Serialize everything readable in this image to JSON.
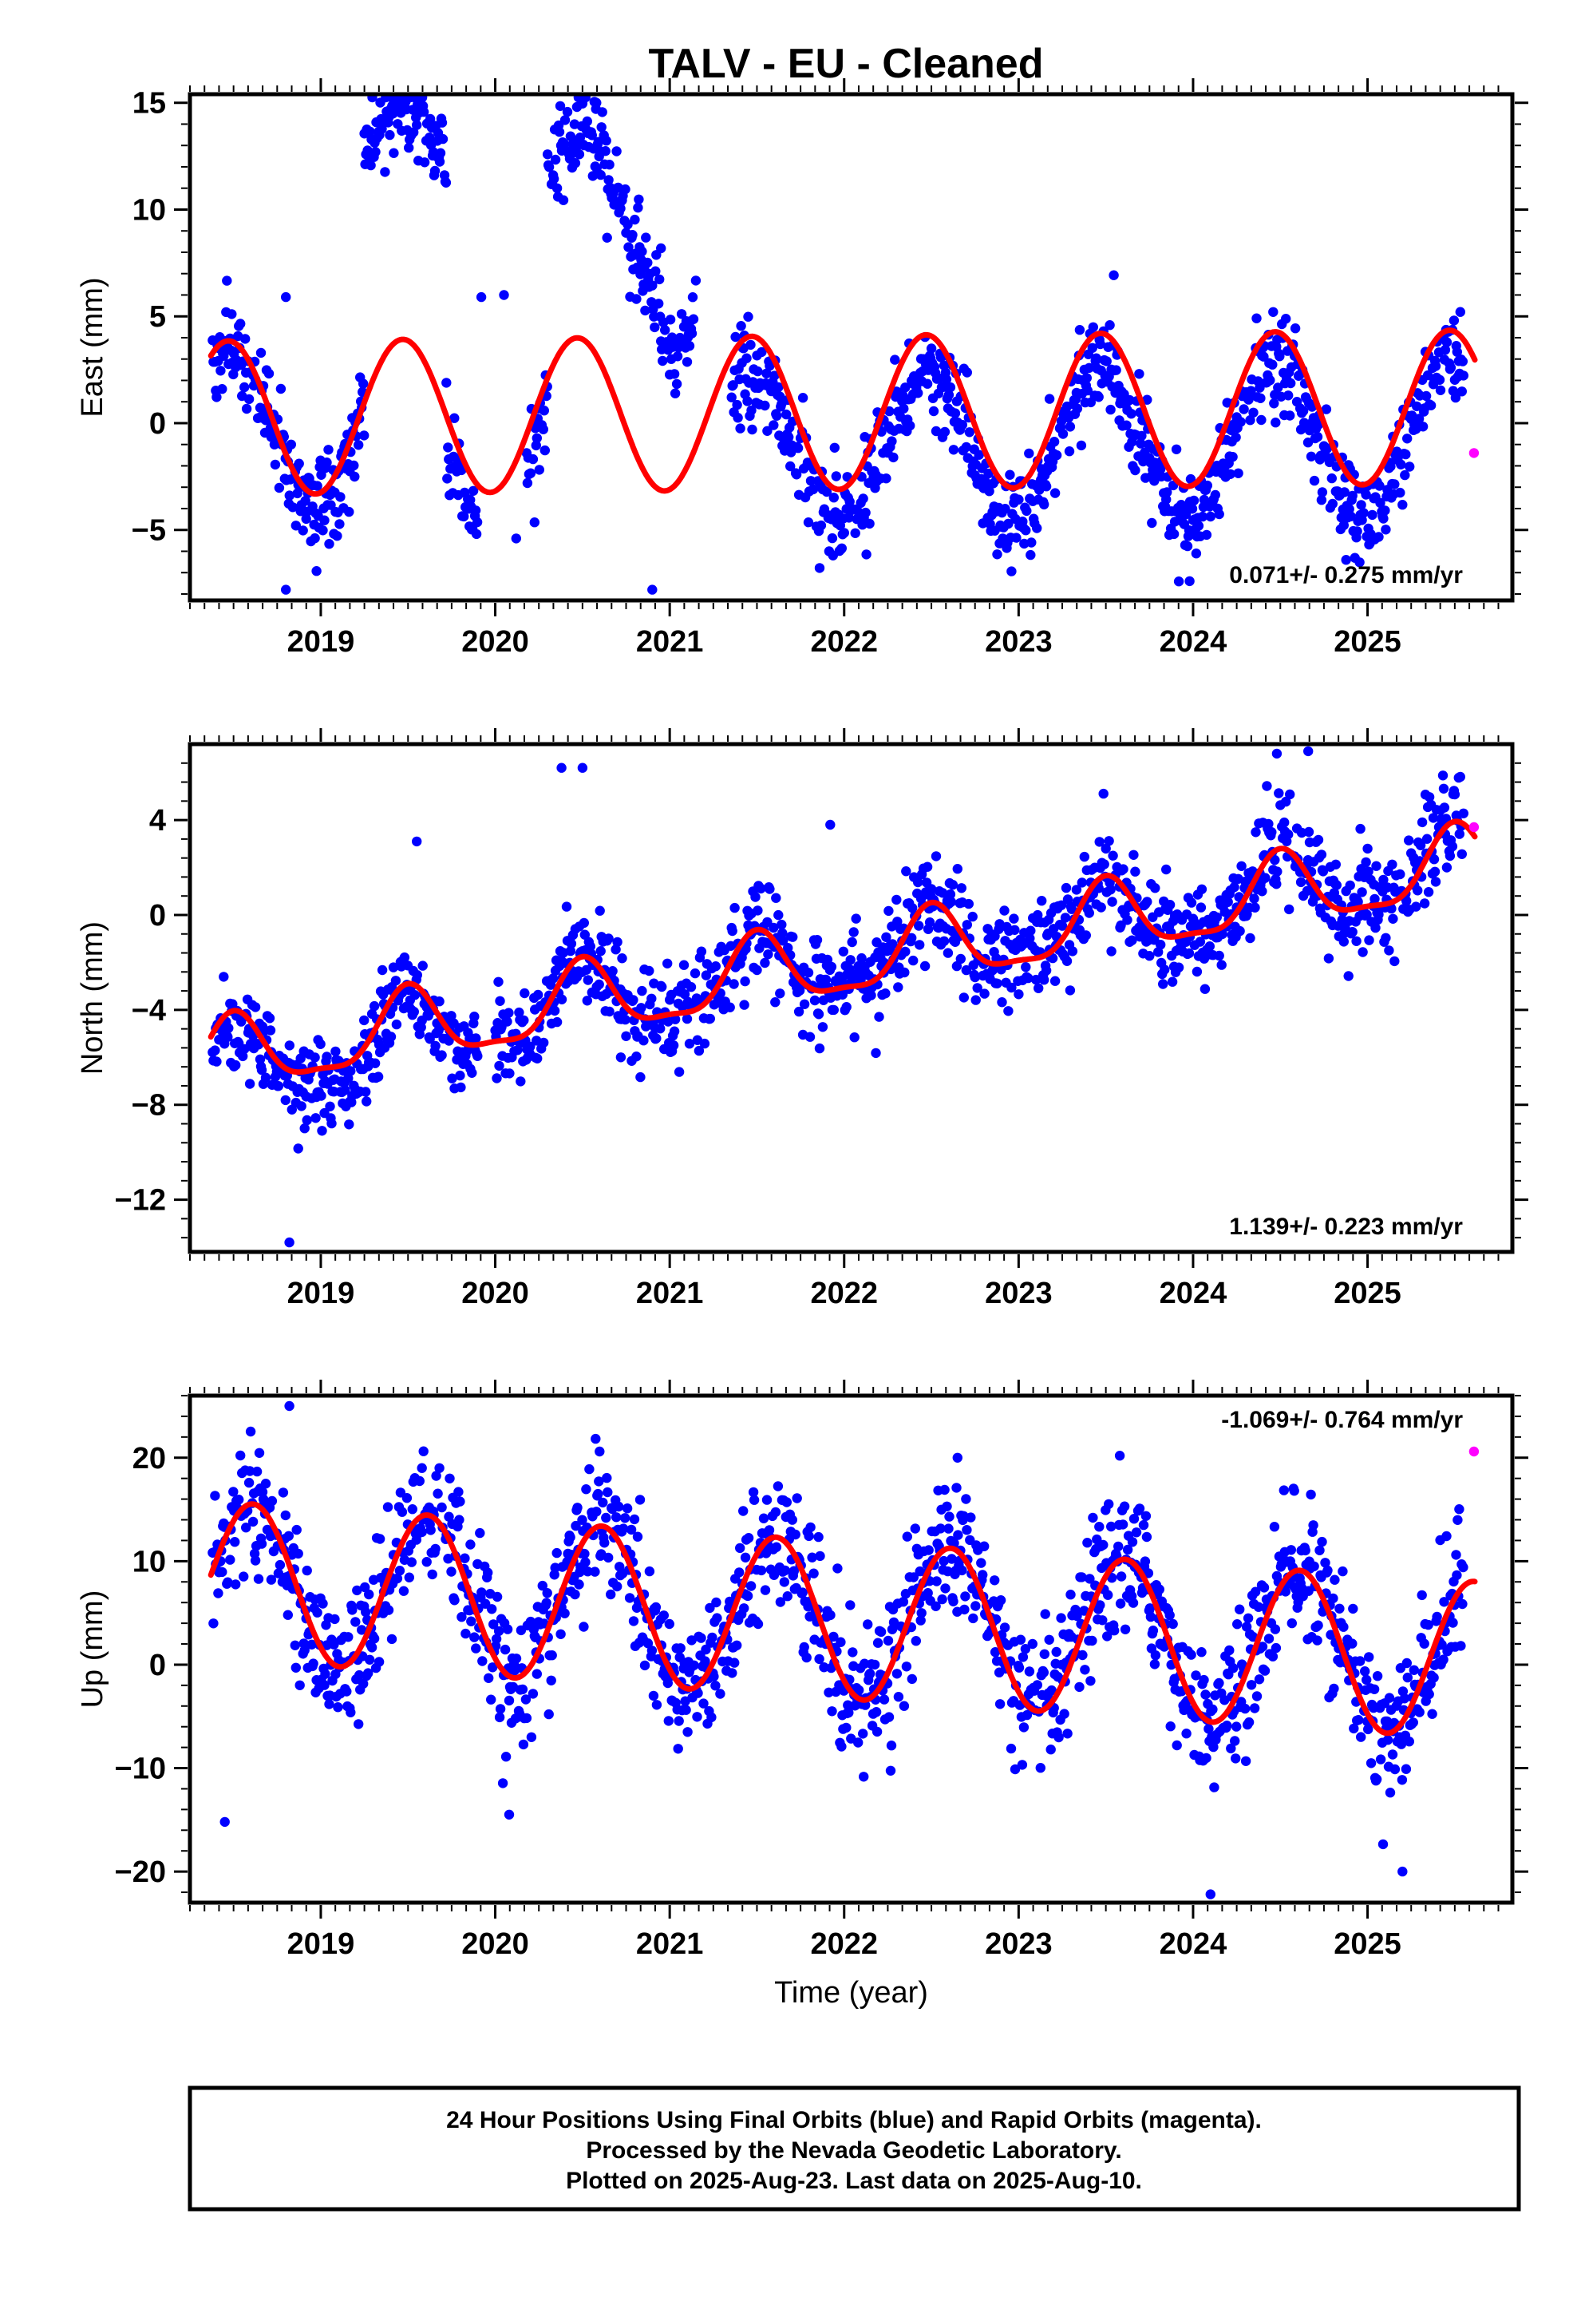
{
  "figure": {
    "title": "TALV  - EU - Cleaned",
    "footer": [
      "24 Hour Positions Using Final Orbits (blue) and Rapid Orbits (magenta).",
      "Processed by the Nevada Geodetic Laboratory.",
      "Plotted on 2025-Aug-23. Last data on 2025-Aug-10."
    ]
  },
  "colors": {
    "final_orbits": "#0000ff",
    "rapid_orbits": "#ff00ff",
    "model_fit": "#ff0000",
    "frame": "#000000"
  },
  "chart_data": [
    {
      "type": "scatter",
      "ylabel": "East (mm)",
      "xlabel": "",
      "xlim": [
        2018.25,
        2025.83
      ],
      "ylim": [
        -8.3,
        15.4
      ],
      "xticks": [
        2019,
        2020,
        2021,
        2022,
        2023,
        2024,
        2025
      ],
      "yticks": [
        -5,
        0,
        5,
        10,
        15
      ],
      "rate_label": "0.071+/- 0.275 mm/yr",
      "rate_position": "bottom-right",
      "grid": false,
      "model": {
        "offset": 0.5,
        "trend": 0.071,
        "annual_amp": 3.6,
        "annual_peak": 0.47,
        "semiannual_amp": 0.0,
        "semiannual_peak": 0.0
      },
      "noise": 1.1,
      "segments": [
        {
          "start": 2018.38,
          "end": 2019.25,
          "offset": -0.4
        },
        {
          "start": 2019.25,
          "end": 2019.72,
          "offset": 11.3
        },
        {
          "start": 2019.72,
          "end": 2019.9,
          "offset": -1.5
        },
        {
          "start": 2020.18,
          "end": 2020.3,
          "offset": -1.5
        },
        {
          "start": 2020.3,
          "end": 2020.95,
          "offset": 9.5
        },
        {
          "start": 2020.95,
          "end": 2021.15,
          "offset": 6.3
        },
        {
          "start": 2021.35,
          "end": 2025.55,
          "offset": -1.6
        }
      ],
      "outliers": [
        {
          "x": 2018.8,
          "y": -7.8
        },
        {
          "x": 2018.8,
          "y": 5.9
        },
        {
          "x": 2019.92,
          "y": 5.9
        },
        {
          "x": 2020.05,
          "y": 6.0
        },
        {
          "x": 2020.12,
          "y": -5.4
        },
        {
          "x": 2020.9,
          "y": -7.8
        },
        {
          "x": 2023.98,
          "y": -7.4
        },
        {
          "x": 2019.4,
          "y": 14.7
        },
        {
          "x": 2020.58,
          "y": 15.0
        }
      ],
      "rapid_points": [
        {
          "x": 2025.61,
          "y": -1.4
        }
      ]
    },
    {
      "type": "scatter",
      "ylabel": "North (mm)",
      "xlabel": "",
      "xlim": [
        2018.25,
        2025.83
      ],
      "ylim": [
        -14.2,
        7.2
      ],
      "xticks": [
        2019,
        2020,
        2021,
        2022,
        2023,
        2024,
        2025
      ],
      "yticks": [
        -12,
        -8,
        -4,
        0,
        4
      ],
      "rate_label": "1.139+/- 0.223 mm/yr",
      "rate_position": "bottom-right",
      "grid": false,
      "model": {
        "offset": -2.0,
        "trend": 1.139,
        "annual_amp": 1.5,
        "annual_peak": 0.5,
        "semiannual_amp": 0.45,
        "semiannual_peak": 0.0
      },
      "noise": 1.0,
      "segments": [
        {
          "start": 2018.38,
          "end": 2019.9,
          "offset": -0.6
        },
        {
          "start": 2020.0,
          "end": 2025.55,
          "offset": 0.1
        }
      ],
      "outliers": [
        {
          "x": 2018.82,
          "y": -13.8
        },
        {
          "x": 2021.92,
          "y": 3.8
        },
        {
          "x": 2020.38,
          "y": 6.2
        },
        {
          "x": 2020.5,
          "y": 6.2
        },
        {
          "x": 2019.55,
          "y": 3.1
        },
        {
          "x": 2024.48,
          "y": 6.8
        },
        {
          "x": 2024.66,
          "y": 6.9
        },
        {
          "x": 2020.72,
          "y": -6.0
        }
      ],
      "rapid_points": [
        {
          "x": 2025.61,
          "y": 3.7
        }
      ]
    },
    {
      "type": "scatter",
      "ylabel": "Up (mm)",
      "xlabel": "Time (year)",
      "xlim": [
        2018.25,
        2025.83
      ],
      "ylim": [
        -23.0,
        26.0
      ],
      "xticks": [
        2019,
        2020,
        2021,
        2022,
        2023,
        2024,
        2025
      ],
      "yticks": [
        -20,
        -10,
        0,
        10,
        20
      ],
      "rate_label": "-1.069+/- 0.764 mm/yr",
      "rate_position": "top-right",
      "grid": false,
      "model": {
        "offset": 4.3,
        "trend": -1.069,
        "annual_amp": 7.6,
        "annual_peak": 0.61,
        "semiannual_amp": 0.0,
        "semiannual_peak": 0.0
      },
      "noise": 3.2,
      "segments": [
        {
          "start": 2018.38,
          "end": 2025.55,
          "offset": 0.0
        }
      ],
      "outliers": [
        {
          "x": 2018.82,
          "y": 25.0
        },
        {
          "x": 2018.45,
          "y": -15.2
        },
        {
          "x": 2020.08,
          "y": -14.5
        },
        {
          "x": 2022.65,
          "y": 20.0
        },
        {
          "x": 2023.58,
          "y": 20.2
        },
        {
          "x": 2024.1,
          "y": -22.2
        },
        {
          "x": 2019.58,
          "y": 19.0
        },
        {
          "x": 2024.58,
          "y": 16.8
        },
        {
          "x": 2025.2,
          "y": -20.0
        }
      ],
      "rapid_points": [
        {
          "x": 2025.61,
          "y": 20.6
        }
      ]
    }
  ]
}
